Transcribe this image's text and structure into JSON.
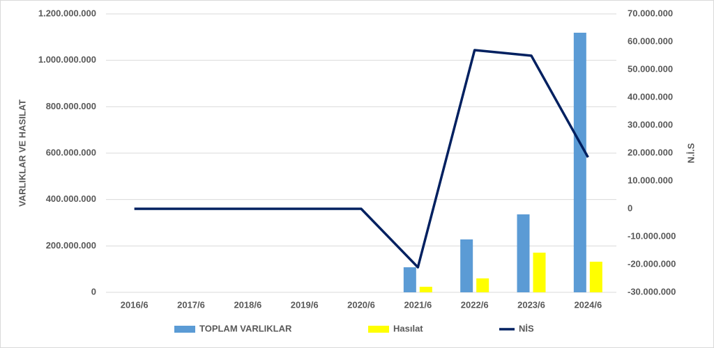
{
  "chart_data": {
    "type": "bar-line",
    "categories": [
      "2016/6",
      "2017/6",
      "2018/6",
      "2019/6",
      "2020/6",
      "2021/6",
      "2022/6",
      "2023/6",
      "2024/6"
    ],
    "series": [
      {
        "name": "TOPLAM VARLIKLAR",
        "type": "bar",
        "color": "#5b9bd5",
        "values": [
          null,
          null,
          null,
          null,
          null,
          108000000,
          228000000,
          336000000,
          1119000000
        ]
      },
      {
        "name": "Hasılat",
        "type": "bar",
        "color": "#ffff00",
        "values": [
          null,
          null,
          null,
          null,
          null,
          24000000,
          60000000,
          171000000,
          132000000
        ]
      },
      {
        "name": "NİS",
        "type": "line",
        "axis": "y2",
        "color": "#002060",
        "values": [
          0,
          0,
          0,
          0,
          0,
          -21000000,
          57000000,
          55000000,
          18500000
        ]
      }
    ],
    "ylabel": "VARLIKLAR VE HASILAT",
    "y2label": "N.İ.S",
    "ylim": [
      0,
      1200000000
    ],
    "yticks": [
      0,
      {
        "value": 200000000,
        "label": "200.000.000"
      },
      {
        "value": 400000000,
        "label": "400.000.000"
      },
      {
        "value": 600000000,
        "label": "600.000.000"
      },
      {
        "value": 800000000,
        "label": "800.000.000"
      },
      {
        "value": 1000000000,
        "label": "1.000.000.000"
      },
      {
        "value": 1200000000,
        "label": "1.200.000.000"
      }
    ],
    "y2lim": [
      -30000000,
      70000000
    ],
    "y2ticks": [
      {
        "value": -30000000,
        "label": "-30.000.000"
      },
      {
        "value": -20000000,
        "label": "-20.000.000"
      },
      {
        "value": -10000000,
        "label": "-10.000.000"
      },
      0,
      {
        "value": 10000000,
        "label": "10.000.000"
      },
      {
        "value": 20000000,
        "label": "20.000.000"
      },
      {
        "value": 30000000,
        "label": "30.000.000"
      },
      {
        "value": 40000000,
        "label": "40.000.000"
      },
      {
        "value": 50000000,
        "label": "50.000.000"
      },
      {
        "value": 60000000,
        "label": "60.000.000"
      },
      {
        "value": 70000000,
        "label": "70.000.000"
      }
    ],
    "grid": true,
    "legend": "bottom"
  }
}
